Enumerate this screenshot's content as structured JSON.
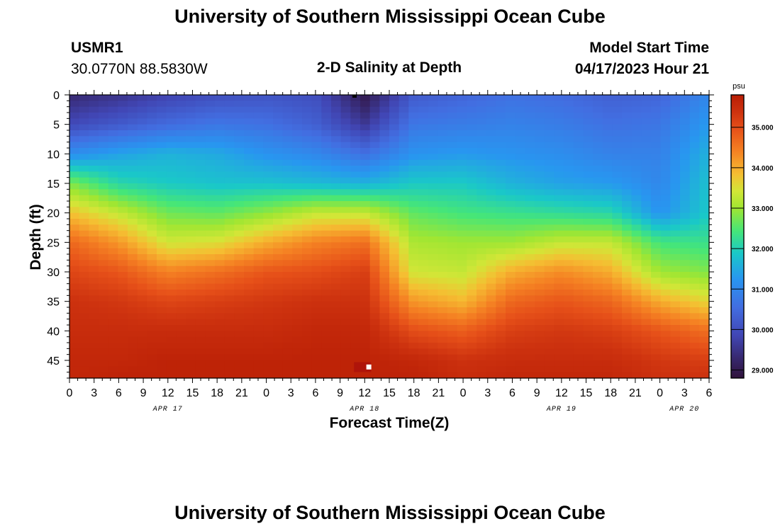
{
  "header": {
    "title": "University of Southern Mississippi Ocean Cube",
    "station_id": "USMR1",
    "coords": "30.0770N  88.5830W",
    "subtitle": "2-D Salinity at Depth",
    "model_start_label": "Model Start Time",
    "model_start_value": "04/17/2023 Hour 21"
  },
  "footer": {
    "title": "University of Southern Mississippi Ocean Cube"
  },
  "chart_data": {
    "type": "heatmap",
    "title": "2-D Salinity at Depth",
    "xlabel": "Forecast Time(Z)",
    "ylabel": "Depth (ft)",
    "x_tick_labels": [
      "0",
      "3",
      "6",
      "9",
      "12",
      "15",
      "18",
      "21",
      "0",
      "3",
      "6",
      "9",
      "12",
      "15",
      "18",
      "21",
      "0",
      "3",
      "6",
      "9",
      "12",
      "15",
      "18",
      "21",
      "0",
      "3",
      "6"
    ],
    "x_hours_since_apr17_00z": [
      0,
      3,
      6,
      9,
      12,
      15,
      18,
      21,
      24,
      27,
      30,
      33,
      36,
      39,
      42,
      45,
      48,
      51,
      54,
      57,
      60,
      63,
      66,
      69,
      72,
      75,
      78
    ],
    "date_labels": [
      {
        "label": "APR 17",
        "hour": 12
      },
      {
        "label": "APR 18",
        "hour": 36
      },
      {
        "label": "APR 19",
        "hour": 60
      },
      {
        "label": "APR 20",
        "hour": 75
      }
    ],
    "y_ticks": [
      0,
      5,
      10,
      15,
      20,
      25,
      30,
      35,
      40,
      45
    ],
    "xlim": [
      0,
      78
    ],
    "ylim": [
      48,
      0
    ],
    "colorbar": {
      "unit": "psu",
      "range": [
        28.8,
        35.8
      ],
      "ticks": [
        "29.000",
        "30.000",
        "31.000",
        "32.000",
        "33.000",
        "34.000",
        "35.000"
      ],
      "tick_values": [
        29,
        30,
        31,
        32,
        33,
        34,
        35
      ]
    },
    "field": {
      "description": "salinity (psu) sampled at forecast hours (columns) and depths in ft (rows)",
      "hours": [
        0,
        6,
        12,
        18,
        24,
        30,
        36,
        42,
        48,
        54,
        60,
        66,
        72,
        78
      ],
      "depths": [
        0,
        5,
        10,
        15,
        20,
        25,
        30,
        35,
        40,
        45,
        48
      ],
      "values": [
        [
          29.3,
          29.5,
          29.8,
          30.0,
          30.1,
          30.0,
          29.0,
          30.2,
          30.4,
          30.6,
          30.5,
          30.3,
          30.4,
          31.0
        ],
        [
          29.9,
          30.2,
          30.5,
          30.7,
          30.6,
          30.3,
          29.6,
          30.7,
          30.8,
          30.9,
          30.8,
          30.6,
          30.7,
          31.3
        ],
        [
          31.1,
          31.4,
          31.6,
          31.5,
          31.2,
          31.0,
          30.6,
          31.2,
          31.3,
          31.2,
          31.1,
          30.9,
          30.9,
          31.6
        ],
        [
          32.8,
          32.1,
          31.9,
          31.8,
          31.8,
          31.7,
          31.6,
          31.9,
          31.9,
          31.6,
          31.4,
          31.3,
          31.0,
          31.8
        ],
        [
          33.8,
          33.3,
          32.7,
          32.6,
          32.9,
          33.3,
          33.3,
          32.6,
          32.4,
          32.3,
          32.2,
          32.1,
          31.2,
          31.9
        ],
        [
          34.7,
          34.2,
          33.4,
          33.5,
          34.0,
          34.4,
          34.6,
          33.1,
          33.0,
          33.0,
          33.3,
          33.3,
          32.4,
          32.3
        ],
        [
          35.1,
          34.9,
          34.4,
          34.6,
          34.9,
          35.0,
          35.2,
          33.4,
          33.3,
          34.0,
          34.3,
          34.0,
          33.0,
          32.8
        ],
        [
          35.4,
          35.3,
          35.1,
          35.2,
          35.3,
          35.4,
          35.4,
          34.2,
          33.9,
          34.7,
          34.9,
          34.7,
          34.0,
          33.6
        ],
        [
          35.5,
          35.5,
          35.5,
          35.5,
          35.5,
          35.6,
          35.6,
          35.0,
          34.8,
          35.2,
          35.3,
          35.2,
          34.9,
          34.6
        ],
        [
          35.6,
          35.6,
          35.7,
          35.7,
          35.7,
          35.7,
          35.7,
          35.6,
          35.4,
          35.5,
          35.5,
          35.5,
          35.3,
          35.2
        ],
        [
          35.6,
          35.7,
          35.7,
          35.7,
          35.7,
          35.7,
          35.7,
          35.7,
          35.5,
          35.6,
          35.6,
          35.6,
          35.4,
          35.4
        ]
      ]
    }
  }
}
